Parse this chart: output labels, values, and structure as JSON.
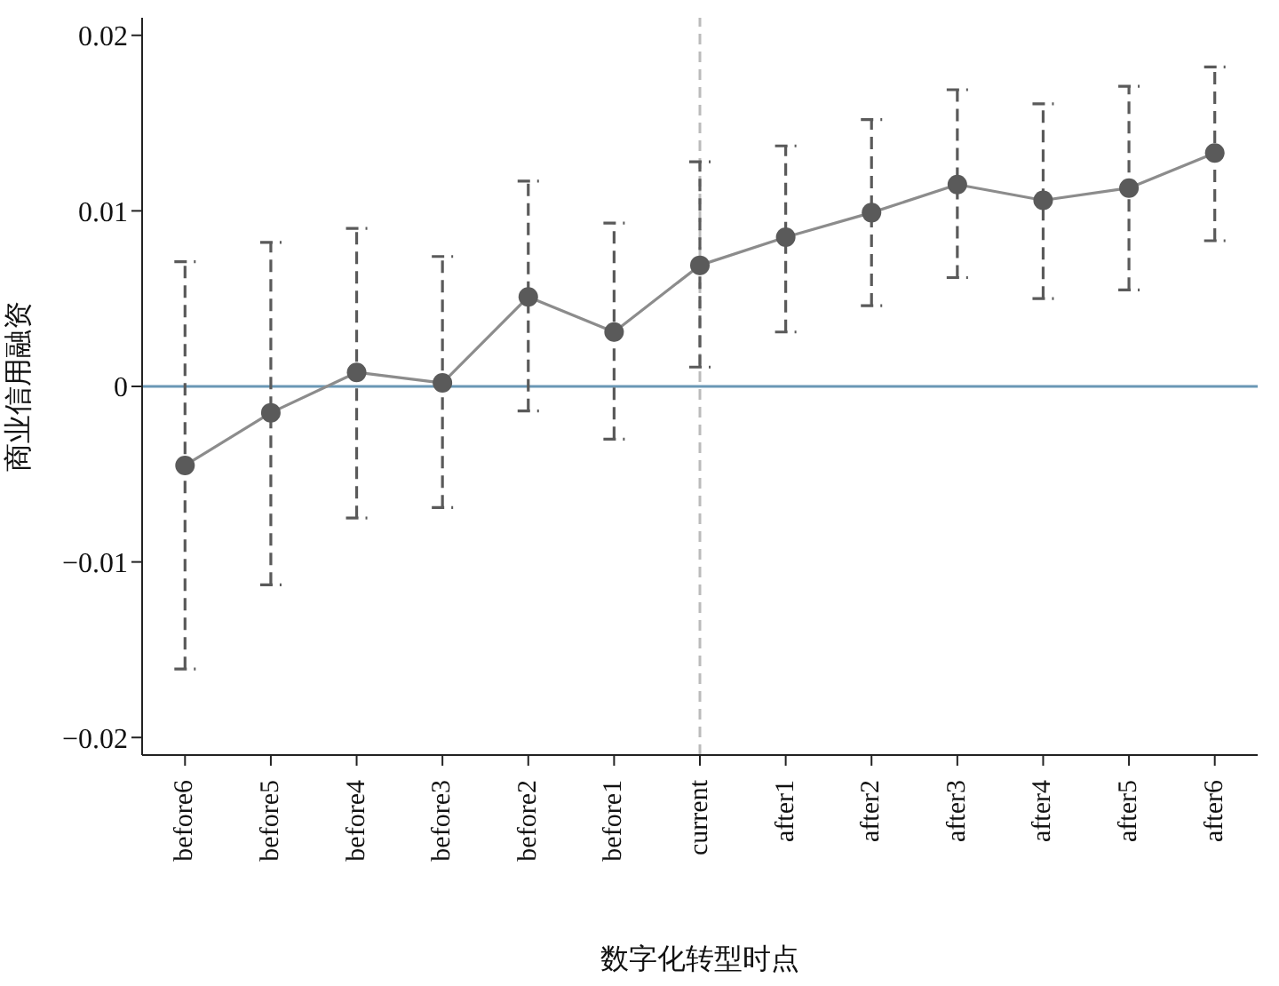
{
  "chart_data": {
    "type": "line",
    "xlabel": "数字化转型时点",
    "ylabel": "商业信用融资",
    "categories": [
      "before6",
      "before5",
      "before4",
      "before3",
      "before2",
      "before1",
      "current",
      "after1",
      "after2",
      "after3",
      "after4",
      "after5",
      "after6"
    ],
    "series": [
      {
        "color": "#5a5a5a",
        "values": [
          -0.0045,
          -0.0015,
          0.0008,
          0.0002,
          0.0051,
          0.0031,
          0.0069,
          0.0085,
          0.0099,
          0.0115,
          0.0106,
          0.0113,
          0.0133
        ],
        "errors": [
          [
            -0.0161,
            0.0071
          ],
          [
            -0.0113,
            0.0082
          ],
          [
            -0.0075,
            0.009
          ],
          [
            -0.0069,
            0.0074
          ],
          [
            -0.0014,
            0.0117
          ],
          [
            -0.003,
            0.0093
          ],
          [
            0.0011,
            0.0128
          ],
          [
            0.0031,
            0.0137
          ],
          [
            0.0046,
            0.0152
          ],
          [
            0.0062,
            0.0169
          ],
          [
            0.005,
            0.0161
          ],
          [
            0.0055,
            0.0171
          ],
          [
            0.0083,
            0.0182
          ]
        ]
      }
    ],
    "ylim": [
      -0.021,
      0.021
    ],
    "yticks": [
      {
        "value": -0.02,
        "label": "−0.02"
      },
      {
        "value": -0.01,
        "label": "−0.01"
      },
      0,
      0.01,
      0.02
    ],
    "ref_lines": [
      {
        "axis": "y",
        "value": 0,
        "color": "#6a97b5",
        "line_style": "solid"
      },
      {
        "axis": "x",
        "value": "current",
        "color": "#bbbbbb",
        "line_style": "dashed"
      }
    ],
    "marker": "circle",
    "line_style": "solid",
    "grid": false,
    "legend": false
  }
}
